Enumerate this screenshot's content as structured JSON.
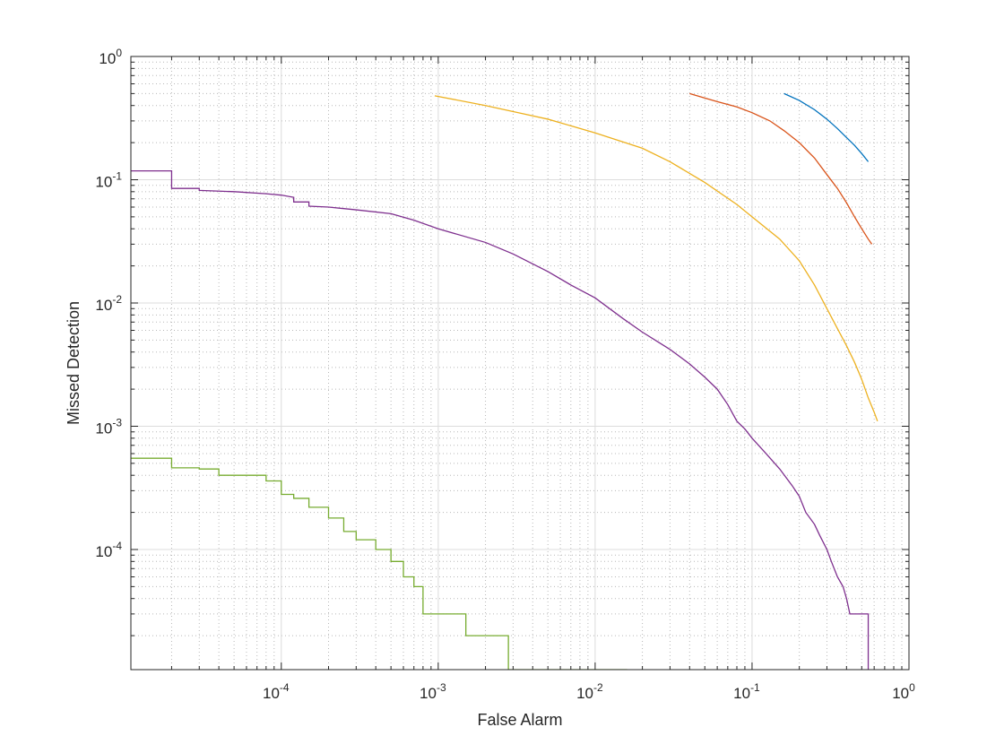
{
  "chart_data": {
    "type": "line",
    "title": "",
    "xlabel": "False Alarm",
    "ylabel": "Missed Detection",
    "xscale": "log",
    "yscale": "log",
    "xlim": [
      1.1e-05,
      1
    ],
    "ylim": [
      1.06e-05,
      1
    ],
    "grid": "major and minor, dotted",
    "x_ticks": [
      {
        "base": "10",
        "exp": "-4",
        "value": 0.0001
      },
      {
        "base": "10",
        "exp": "-3",
        "value": 0.001
      },
      {
        "base": "10",
        "exp": "-2",
        "value": 0.01
      },
      {
        "base": "10",
        "exp": "-1",
        "value": 0.1
      },
      {
        "base": "10",
        "exp": "0",
        "value": 1
      }
    ],
    "y_ticks": [
      {
        "base": "10",
        "exp": "0",
        "value": 1
      },
      {
        "base": "10",
        "exp": "-1",
        "value": 0.1
      },
      {
        "base": "10",
        "exp": "-2",
        "value": 0.01
      },
      {
        "base": "10",
        "exp": "-3",
        "value": 0.001
      },
      {
        "base": "10",
        "exp": "-4",
        "value": 0.0001
      }
    ],
    "series": [
      {
        "color": "#0072BD",
        "step": false,
        "points": [
          [
            0.16,
            0.5
          ],
          [
            0.2,
            0.44
          ],
          [
            0.25,
            0.37
          ],
          [
            0.3,
            0.31
          ],
          [
            0.35,
            0.26
          ],
          [
            0.4,
            0.22
          ],
          [
            0.45,
            0.19
          ],
          [
            0.5,
            0.163
          ],
          [
            0.55,
            0.14
          ]
        ]
      },
      {
        "color": "#D95319",
        "step": false,
        "points": [
          [
            0.04,
            0.5
          ],
          [
            0.05,
            0.46
          ],
          [
            0.06,
            0.43
          ],
          [
            0.08,
            0.39
          ],
          [
            0.1,
            0.35
          ],
          [
            0.13,
            0.3
          ],
          [
            0.16,
            0.25
          ],
          [
            0.2,
            0.2
          ],
          [
            0.25,
            0.15
          ],
          [
            0.3,
            0.11
          ],
          [
            0.35,
            0.085
          ],
          [
            0.4,
            0.065
          ],
          [
            0.45,
            0.05
          ],
          [
            0.5,
            0.04
          ],
          [
            0.55,
            0.033
          ],
          [
            0.58,
            0.03
          ]
        ]
      },
      {
        "color": "#EDB120",
        "step": false,
        "points": [
          [
            0.00095,
            0.48
          ],
          [
            0.002,
            0.4
          ],
          [
            0.005,
            0.31
          ],
          [
            0.01,
            0.24
          ],
          [
            0.02,
            0.18
          ],
          [
            0.03,
            0.14
          ],
          [
            0.05,
            0.095
          ],
          [
            0.08,
            0.063
          ],
          [
            0.1,
            0.05
          ],
          [
            0.15,
            0.033
          ],
          [
            0.2,
            0.022
          ],
          [
            0.25,
            0.014
          ],
          [
            0.3,
            0.009
          ],
          [
            0.35,
            0.0062
          ],
          [
            0.4,
            0.0045
          ],
          [
            0.45,
            0.0033
          ],
          [
            0.5,
            0.0024
          ],
          [
            0.55,
            0.0017
          ],
          [
            0.6,
            0.0013
          ],
          [
            0.63,
            0.0011
          ]
        ]
      },
      {
        "color": "#7E2F8E",
        "step": true,
        "points": [
          [
            1.1e-05,
            0.118
          ],
          [
            2e-05,
            0.118
          ],
          [
            2e-05,
            0.085
          ],
          [
            3e-05,
            0.085
          ],
          [
            3e-05,
            0.082
          ],
          [
            5e-05,
            0.08
          ],
          [
            8e-05,
            0.077
          ],
          [
            0.0001,
            0.075
          ],
          [
            0.00012,
            0.072
          ],
          [
            0.00012,
            0.066
          ],
          [
            0.00015,
            0.066
          ],
          [
            0.00015,
            0.061
          ],
          [
            0.0002,
            0.06
          ],
          [
            0.0003,
            0.057
          ],
          [
            0.0005,
            0.053
          ],
          [
            0.0007,
            0.047
          ],
          [
            0.001,
            0.04
          ],
          [
            0.002,
            0.031
          ],
          [
            0.003,
            0.025
          ],
          [
            0.005,
            0.018
          ],
          [
            0.007,
            0.014
          ],
          [
            0.01,
            0.011
          ],
          [
            0.015,
            0.0075
          ],
          [
            0.02,
            0.0058
          ],
          [
            0.03,
            0.0042
          ],
          [
            0.04,
            0.0032
          ],
          [
            0.05,
            0.0025
          ],
          [
            0.06,
            0.002
          ],
          [
            0.07,
            0.0015
          ],
          [
            0.08,
            0.0011
          ],
          [
            0.09,
            0.00095
          ],
          [
            0.1,
            0.0008
          ],
          [
            0.12,
            0.00062
          ],
          [
            0.15,
            0.00045
          ],
          [
            0.18,
            0.00033
          ],
          [
            0.2,
            0.00027
          ],
          [
            0.22,
            0.0002
          ],
          [
            0.25,
            0.00016
          ],
          [
            0.27,
            0.00013
          ],
          [
            0.3,
            0.0001
          ],
          [
            0.32,
            8e-05
          ],
          [
            0.35,
            6e-05
          ],
          [
            0.38,
            5e-05
          ],
          [
            0.4,
            4e-05
          ],
          [
            0.42,
            3e-05
          ],
          [
            0.55,
            3e-05
          ],
          [
            0.55,
            1.06e-05
          ]
        ]
      },
      {
        "color": "#77AC30",
        "step": true,
        "points": [
          [
            1.1e-05,
            0.00055
          ],
          [
            2e-05,
            0.00055
          ],
          [
            2e-05,
            0.00046
          ],
          [
            3e-05,
            0.00046
          ],
          [
            3e-05,
            0.00045
          ],
          [
            4e-05,
            0.00045
          ],
          [
            4e-05,
            0.0004
          ],
          [
            8e-05,
            0.0004
          ],
          [
            8e-05,
            0.00036
          ],
          [
            0.0001,
            0.00036
          ],
          [
            0.0001,
            0.00028
          ],
          [
            0.00012,
            0.00028
          ],
          [
            0.00012,
            0.00026
          ],
          [
            0.00015,
            0.00026
          ],
          [
            0.00015,
            0.00022
          ],
          [
            0.0002,
            0.00022
          ],
          [
            0.0002,
            0.00018
          ],
          [
            0.00025,
            0.00018
          ],
          [
            0.00025,
            0.00014
          ],
          [
            0.0003,
            0.00014
          ],
          [
            0.0003,
            0.00012
          ],
          [
            0.0004,
            0.00012
          ],
          [
            0.0004,
            0.0001
          ],
          [
            0.0005,
            0.0001
          ],
          [
            0.0005,
            8e-05
          ],
          [
            0.0006,
            8e-05
          ],
          [
            0.0006,
            6e-05
          ],
          [
            0.0007,
            6e-05
          ],
          [
            0.0007,
            5e-05
          ],
          [
            0.0008,
            5e-05
          ],
          [
            0.0008,
            3e-05
          ],
          [
            0.0015,
            3e-05
          ],
          [
            0.0015,
            2e-05
          ],
          [
            0.0028,
            2e-05
          ],
          [
            0.0028,
            1.06e-05
          ],
          [
            0.016,
            1.06e-05
          ]
        ]
      }
    ]
  }
}
